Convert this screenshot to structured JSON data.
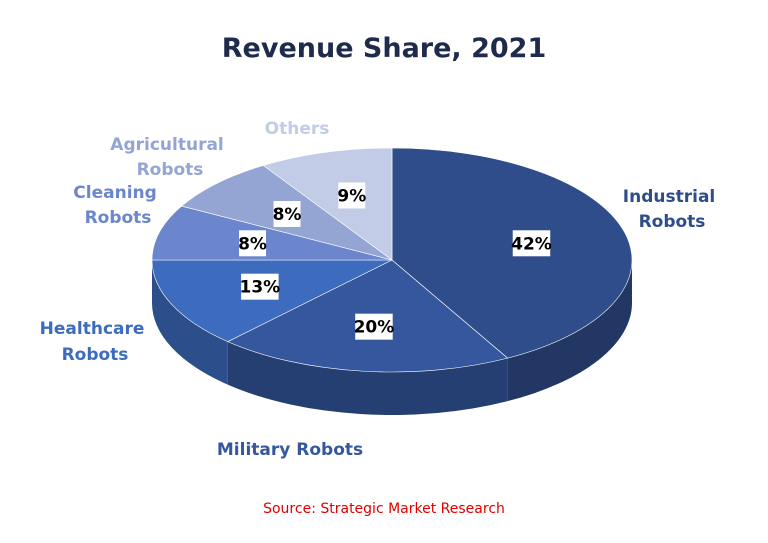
{
  "chart_data": {
    "type": "pie",
    "title": "Revenue Share, 2021",
    "source": "Source: Strategic Market Research",
    "slices": [
      {
        "label": "Industrial Robots",
        "value": 42,
        "display": "42%",
        "color": "#2f4d8a",
        "label_color": "#2f4d8a"
      },
      {
        "label": "Military Robots",
        "value": 20,
        "display": "20%",
        "color": "#34579e",
        "label_color": "#34579e"
      },
      {
        "label": "Healthcare Robots",
        "value": 13,
        "display": "13%",
        "color": "#3d6cbf",
        "label_color": "#3d6cbf"
      },
      {
        "label": "Cleaning Robots",
        "value": 8,
        "display": "8%",
        "color": "#6b86cc",
        "label_color": "#6b86cc"
      },
      {
        "label": "Agricultural Robots",
        "value": 8,
        "display": "8%",
        "color": "#95a5d3",
        "label_color": "#95a5d3"
      },
      {
        "label": "Others",
        "value": 9,
        "display": "9%",
        "color": "#c3cce7",
        "label_color": "#c3cce7"
      }
    ],
    "legend": "none",
    "style": "3d"
  },
  "colors": {
    "title": "#1f2b4d",
    "source": "#e00000"
  }
}
